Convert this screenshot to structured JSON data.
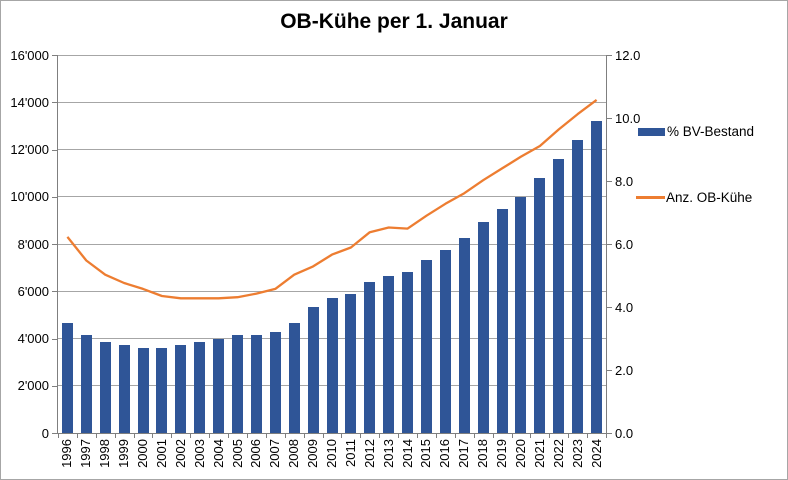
{
  "chart_data": {
    "type": "bar",
    "combo": "bar+line",
    "title": "OB-Kühe per 1. Januar",
    "categories": [
      "1996",
      "1997",
      "1998",
      "1999",
      "2000",
      "2001",
      "2002",
      "2003",
      "2004",
      "2005",
      "2006",
      "2007",
      "2008",
      "2009",
      "2010",
      "2011",
      "2012",
      "2013",
      "2014",
      "2015",
      "2016",
      "2017",
      "2018",
      "2019",
      "2020",
      "2021",
      "2022",
      "2023",
      "2024"
    ],
    "series": [
      {
        "name": "% BV-Bestand",
        "type": "bar",
        "axis": "right",
        "color": "#2F5597",
        "values": [
          3.5,
          3.1,
          2.9,
          2.8,
          2.7,
          2.7,
          2.8,
          2.9,
          3.0,
          3.1,
          3.1,
          3.2,
          3.5,
          4.0,
          4.3,
          4.4,
          4.8,
          5.0,
          5.1,
          5.5,
          5.8,
          6.2,
          6.7,
          7.1,
          7.5,
          8.1,
          8.7,
          9.3,
          9.9
        ]
      },
      {
        "name": "Anz. OB-Kühe",
        "type": "line",
        "axis": "left",
        "color": "#ED7D31",
        "values": [
          8300,
          7300,
          6700,
          6350,
          6100,
          5800,
          5700,
          5700,
          5700,
          5750,
          5900,
          6100,
          6700,
          7050,
          7550,
          7850,
          8500,
          8700,
          8650,
          9200,
          9700,
          10150,
          10700,
          11200,
          11700,
          12150,
          12850,
          13500,
          14100
        ]
      }
    ],
    "left_axis": {
      "min": 0,
      "max": 16000,
      "tick_step": 2000,
      "tick_labels": [
        "0",
        "2'000",
        "4'000",
        "6'000",
        "8'000",
        "10'000",
        "12'000",
        "14'000",
        "16'000"
      ]
    },
    "right_axis": {
      "min": 0,
      "max": 12,
      "tick_step": 2,
      "tick_labels": [
        "0.0",
        "2.0",
        "4.0",
        "6.0",
        "8.0",
        "10.0",
        "12.0"
      ]
    },
    "grid": true,
    "legend_position": "right"
  },
  "colors": {
    "bar": "#2F5597",
    "line": "#ED7D31",
    "gridline": "#A6A6A6",
    "axis": "#7F7F7F",
    "border": "#A6A6A6",
    "background": "#FFFFFF"
  }
}
